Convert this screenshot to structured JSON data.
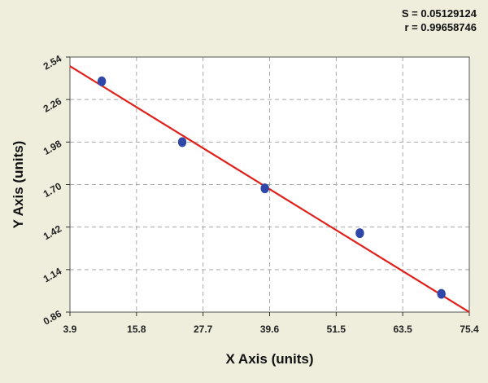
{
  "stats": {
    "s_text": "S = 0.05129124",
    "r_text": "r = 0.99658746"
  },
  "chart_data": {
    "type": "scatter",
    "title": "",
    "xlabel": "X Axis (units)",
    "ylabel": "Y Axis (units)",
    "xlim": [
      3.9,
      75.4
    ],
    "ylim": [
      0.86,
      2.54
    ],
    "x_ticks": [
      "3.9",
      "15.8",
      "27.7",
      "39.6",
      "51.5",
      "63.5",
      "75.4"
    ],
    "y_ticks": [
      "0.86",
      "1.14",
      "1.42",
      "1.70",
      "1.98",
      "2.26",
      "2.54"
    ],
    "grid": true,
    "series": [
      {
        "points": [
          {
            "x": 9.6,
            "y": 2.38
          },
          {
            "x": 24.0,
            "y": 1.98
          },
          {
            "x": 38.8,
            "y": 1.675
          },
          {
            "x": 55.8,
            "y": 1.38
          },
          {
            "x": 70.4,
            "y": 0.98
          }
        ]
      }
    ],
    "fit_line": {
      "x": [
        3.9,
        75.4
      ],
      "y": [
        2.48,
        0.86
      ]
    },
    "colors": {
      "point": "#2e47a8",
      "fit_line": "#e0201b",
      "grid": "#a8a8a8",
      "plot_background": "#ffffff",
      "page_background": "#efeddc"
    }
  }
}
